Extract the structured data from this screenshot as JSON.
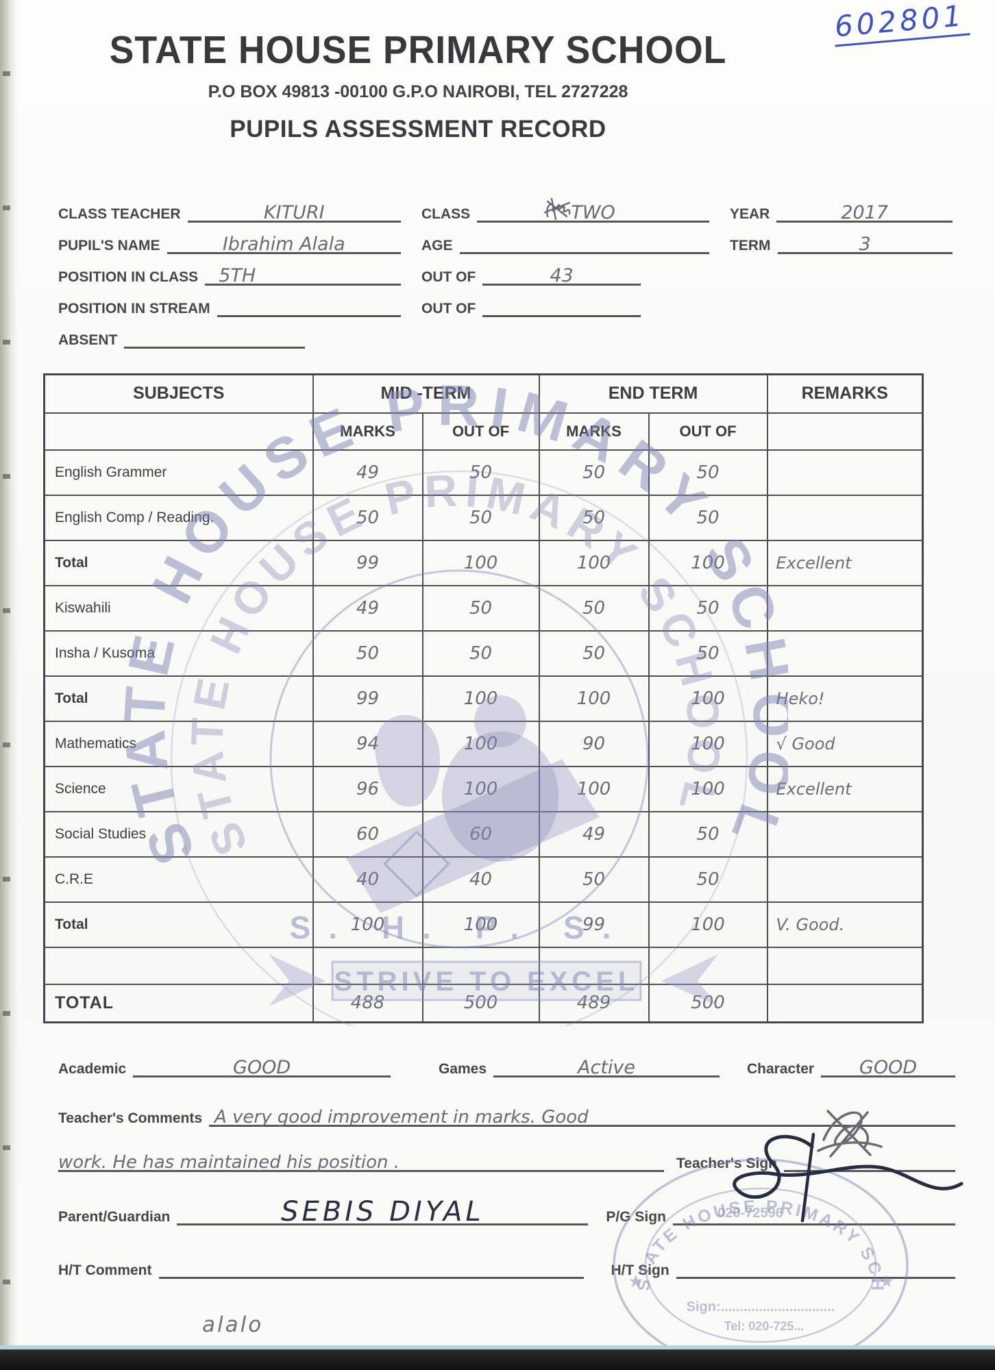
{
  "colors": {
    "pen_blue": "#4254b8",
    "pencil_grey": "#6c6c78",
    "ink_dark": "#272c3f",
    "stamp_purple": "#858ab8"
  },
  "page": {
    "serial_number": "602801",
    "school_name": "STATE HOUSE PRIMARY SCHOOL",
    "address_line": "P.O BOX 49813 -00100 G.P.O NAIROBI, TEL 2727228",
    "doc_title": "PUPILS ASSESSMENT RECORD"
  },
  "info": {
    "class_teacher": {
      "label": "CLASS TEACHER",
      "value": "KITURI"
    },
    "class": {
      "label": "CLASS",
      "value": "TWO"
    },
    "year": {
      "label": "YEAR",
      "value": "2017"
    },
    "pupil_name": {
      "label": "PUPIL'S NAME",
      "value": "Ibrahim Alala"
    },
    "age": {
      "label": "AGE",
      "value": ""
    },
    "term": {
      "label": "TERM",
      "value": "3"
    },
    "position_class": {
      "label": "POSITION IN CLASS",
      "value": "5TH"
    },
    "out_of_class": {
      "label": "OUT OF",
      "value": "43"
    },
    "position_stream": {
      "label": "POSITION IN STREAM",
      "value": ""
    },
    "out_of_stream": {
      "label": "OUT OF",
      "value": ""
    },
    "absent": {
      "label": "ABSENT",
      "value": ""
    }
  },
  "table": {
    "header": {
      "subjects": "SUBJECTS",
      "mid_term": "MID -TERM",
      "end_term": "END TERM",
      "remarks": "REMARKS",
      "marks": "MARKS",
      "out_of": "OUT OF"
    },
    "rows": [
      {
        "subject": "English Grammer",
        "mid_marks": "49",
        "mid_out": "50",
        "end_marks": "50",
        "end_out": "50",
        "remark": "",
        "bold": false
      },
      {
        "subject": "English Comp / Reading.",
        "mid_marks": "50",
        "mid_out": "50",
        "end_marks": "50",
        "end_out": "50",
        "remark": "",
        "bold": false
      },
      {
        "subject": "Total",
        "mid_marks": "99",
        "mid_out": "100",
        "end_marks": "100",
        "end_out": "100",
        "remark": "Excellent",
        "bold": true
      },
      {
        "subject": "Kiswahili",
        "mid_marks": "49",
        "mid_out": "50",
        "end_marks": "50",
        "end_out": "50",
        "remark": "",
        "bold": false
      },
      {
        "subject": "Insha / Kusoma",
        "mid_marks": "50",
        "mid_out": "50",
        "end_marks": "50",
        "end_out": "50",
        "remark": "",
        "bold": false
      },
      {
        "subject": "Total",
        "mid_marks": "99",
        "mid_out": "100",
        "end_marks": "100",
        "end_out": "100",
        "remark": "Heko!",
        "bold": true
      },
      {
        "subject": "Mathematics",
        "mid_marks": "94",
        "mid_out": "100",
        "end_marks": "90",
        "end_out": "100",
        "remark": "√ Good",
        "bold": false
      },
      {
        "subject": "Science",
        "mid_marks": "96",
        "mid_out": "100",
        "end_marks": "100",
        "end_out": "100",
        "remark": "Excellent",
        "bold": false
      },
      {
        "subject": "Social Studies",
        "mid_marks": "60",
        "mid_out": "60",
        "end_marks": "49",
        "end_out": "50",
        "remark": "",
        "bold": false
      },
      {
        "subject": "C.R.E",
        "mid_marks": "40",
        "mid_out": "40",
        "end_marks": "50",
        "end_out": "50",
        "remark": "",
        "bold": false
      },
      {
        "subject": "Total",
        "mid_marks": "100",
        "mid_out": "100",
        "end_marks": "99",
        "end_out": "100",
        "remark": "V. Good.",
        "bold": true
      },
      {
        "subject": "",
        "mid_marks": "",
        "mid_out": "",
        "end_marks": "",
        "end_out": "",
        "remark": "",
        "bold": false
      },
      {
        "subject": "TOTAL",
        "mid_marks": "488",
        "mid_out": "500",
        "end_marks": "489",
        "end_out": "500",
        "remark": "",
        "bold": true
      }
    ]
  },
  "stamp": {
    "arc_text": "STATE HOUSE PRIMARY SCHOOL",
    "initials": "S. H. P. S.",
    "motto": "STRIVE TO EXCEL"
  },
  "footer_stamp": {
    "arc_text": "STATE HOUSE PRIMARY SCHOOL",
    "phone": "020-72596",
    "sign_line": "Sign:..............................",
    "tel_line": "Tel: 020-725...",
    "star": "★"
  },
  "footer": {
    "academic": {
      "label": "Academic",
      "value": "GOOD"
    },
    "games": {
      "label": "Games",
      "value": "Active"
    },
    "character": {
      "label": "Character",
      "value": "GOOD"
    },
    "comments_label": "Teacher's Comments",
    "comments_line1": "A   very   good   improvement   in   marks.  Good",
    "comments_line2": "work.  He  has  maintained  his  position .",
    "teacher_sign_label": "Teacher's Sign",
    "parent_label": "Parent/Guardian",
    "parent_value": "SEBIS  DIYAL",
    "pg_sign_label": "P/G Sign",
    "ht_comment_label": "H/T Comment",
    "ht_sign_label": "H/T Sign",
    "partial_scribble": "alalo"
  }
}
